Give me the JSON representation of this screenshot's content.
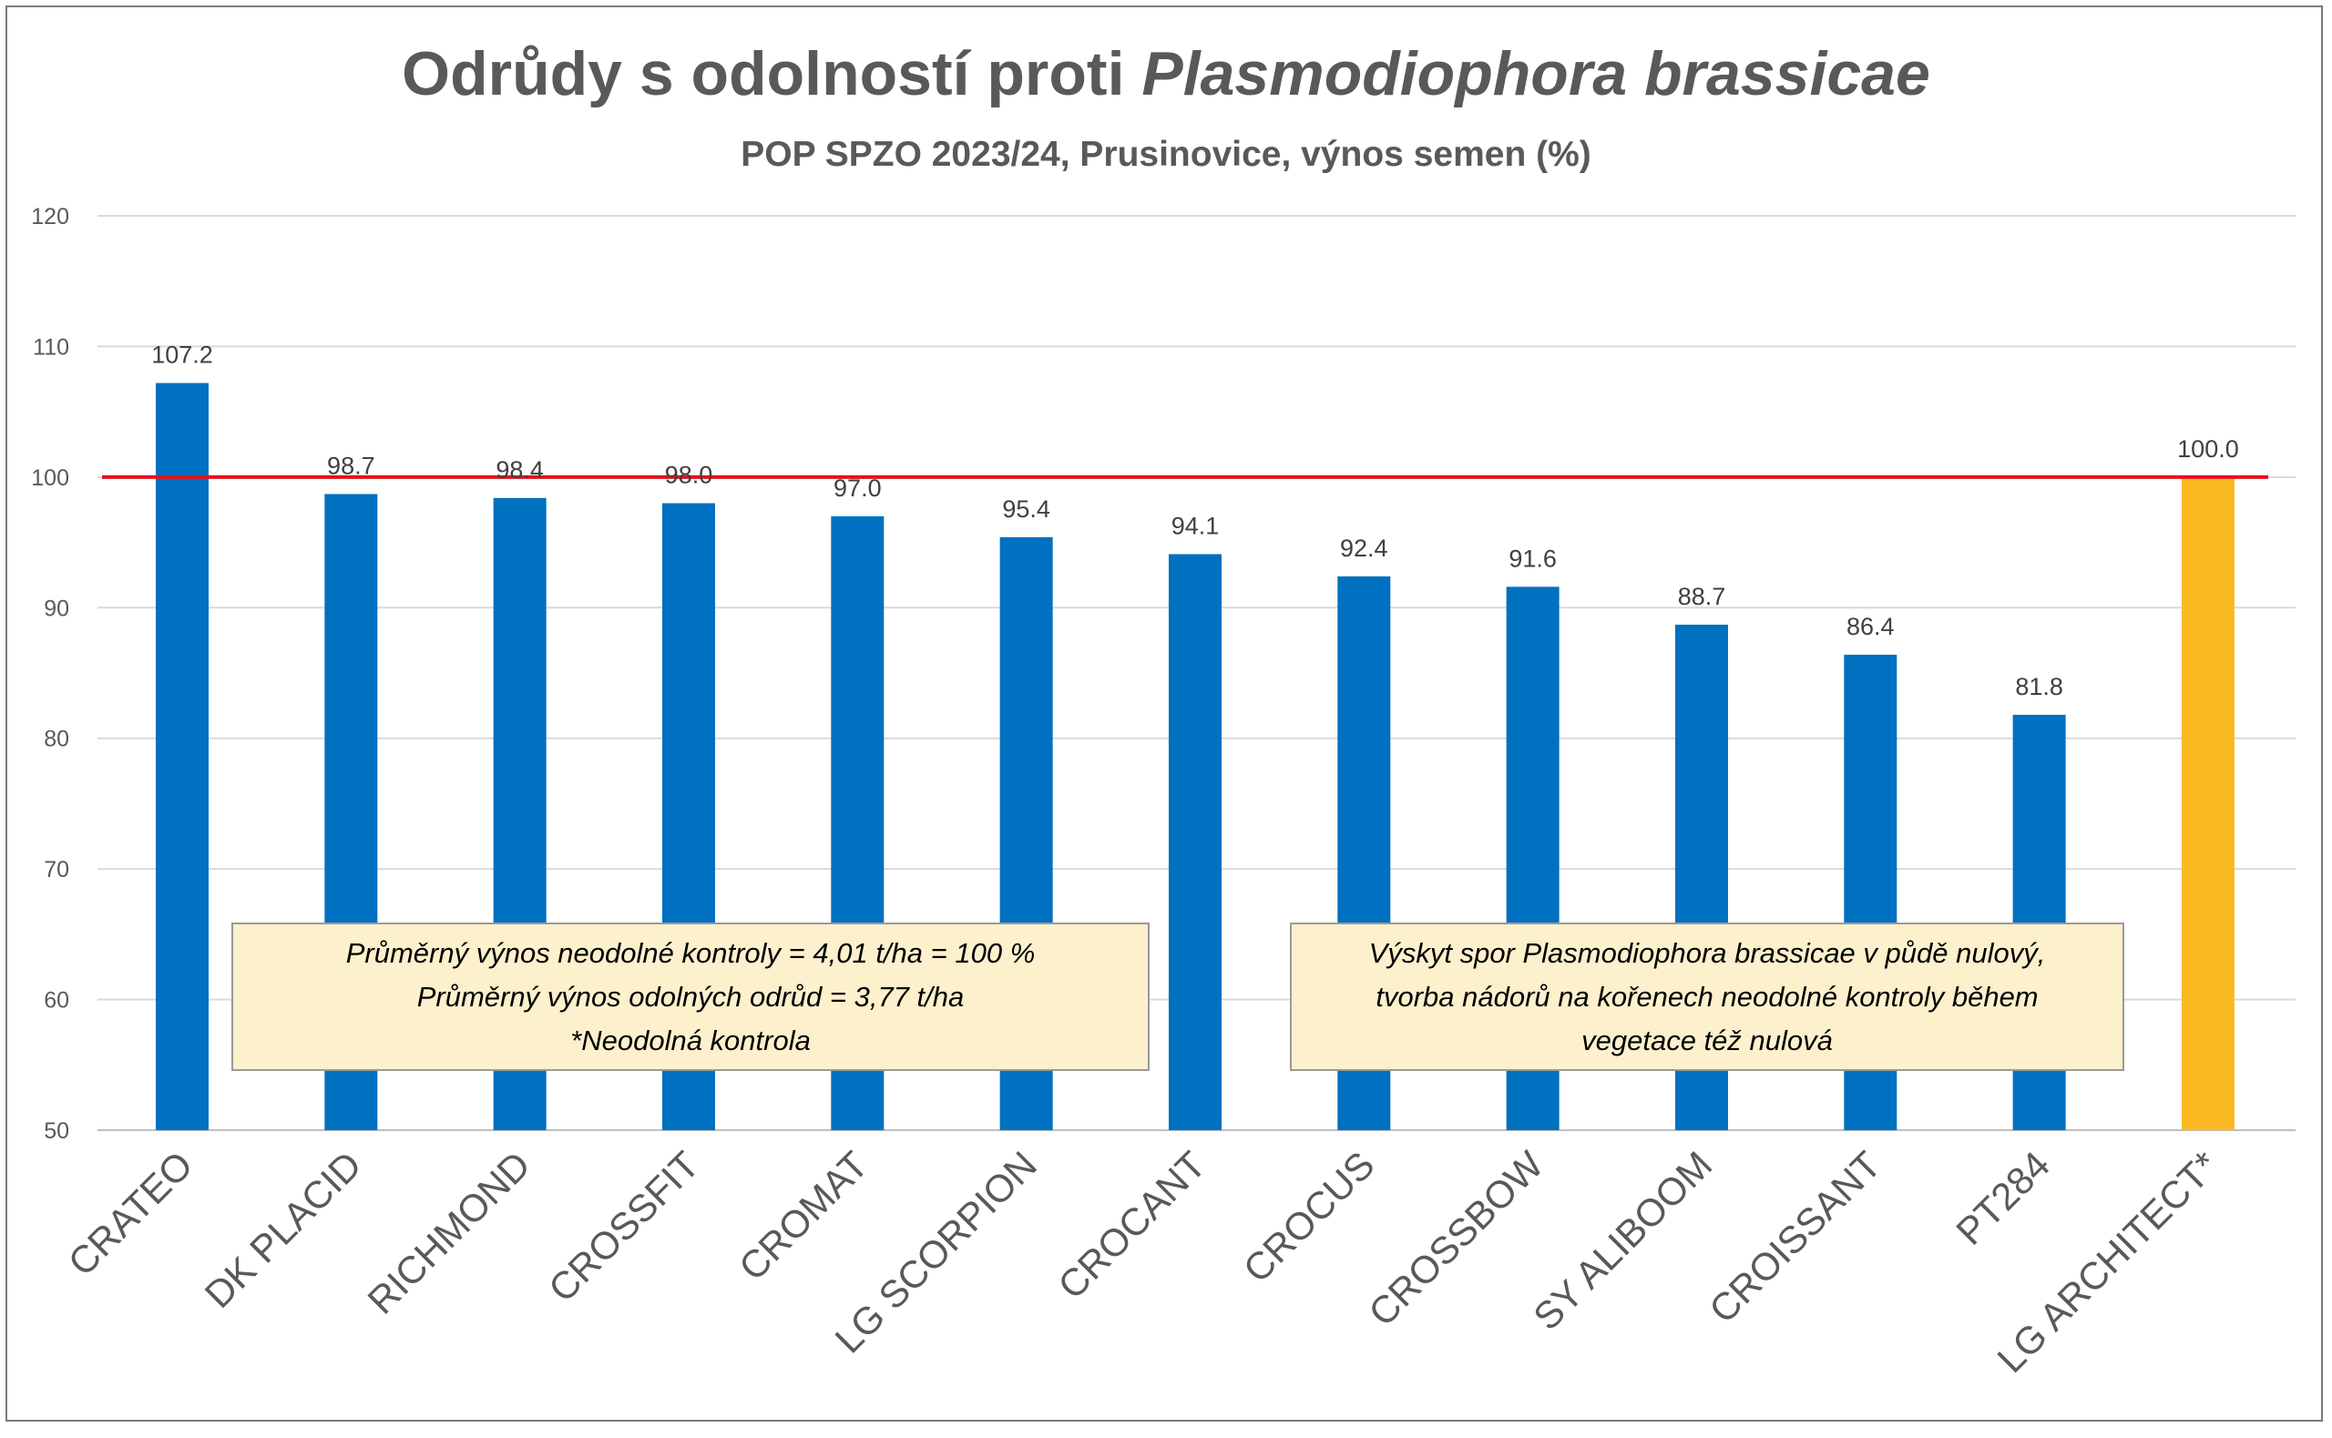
{
  "chart_data": {
    "type": "bar",
    "title_regular": "Odrůdy s odolností proti ",
    "title_italic": "Plasmodiophora brassicae",
    "subtitle": "POP SPZO 2023/24, Prusinovice, výnos semen (%)",
    "categories": [
      "CRATEO",
      "DK PLACID",
      "RICHMOND",
      "CROSSFIT",
      "CROMAT",
      "LG SCORPION",
      "CROCANT",
      "CROCUS",
      "CROSSBOW",
      "SY ALIBOOM",
      "CROISSANT",
      "PT284",
      "LG ARCHITECT*"
    ],
    "values": [
      107.2,
      98.7,
      98.4,
      98.0,
      97.0,
      95.4,
      94.1,
      92.4,
      91.6,
      88.7,
      86.4,
      81.8,
      100.0
    ],
    "value_labels": [
      "107.2",
      "98.7",
      "98.4",
      "98.0",
      "97.0",
      "95.4",
      "94.1",
      "92.4",
      "91.6",
      "88.7",
      "86.4",
      "81.8",
      "100.0"
    ],
    "bar_colors": [
      "#0070c0",
      "#0070c0",
      "#0070c0",
      "#0070c0",
      "#0070c0",
      "#0070c0",
      "#0070c0",
      "#0070c0",
      "#0070c0",
      "#0070c0",
      "#0070c0",
      "#0070c0",
      "#fbb921"
    ],
    "reference_line": {
      "value": 100,
      "color": "#e3111b"
    },
    "ylim": [
      50,
      120
    ],
    "yticks": [
      "50",
      "60",
      "70",
      "80",
      "90",
      "100",
      "110",
      "120"
    ],
    "grid": true,
    "xlabel": "",
    "ylabel": ""
  },
  "notes": {
    "left": {
      "line1": "Průměrný výnos neodolné kontroly = 4,01 t/ha = 100 %",
      "line2": "Průměrný výnos odolných odrůd = 3,77 t/ha",
      "line3": "*Neodolná kontrola"
    },
    "right": {
      "line1": "Výskyt spor Plasmodiophora brassicae v půdě nulový,",
      "line2": "tvorba nádorů na kořenech neodolné kontroly během",
      "line3": "vegetace též nulová"
    }
  },
  "colors": {
    "bar_blue": "#0070c0",
    "bar_control": "#fbb921",
    "reference": "#e3111b",
    "note_fill": "#fdf0cd"
  }
}
